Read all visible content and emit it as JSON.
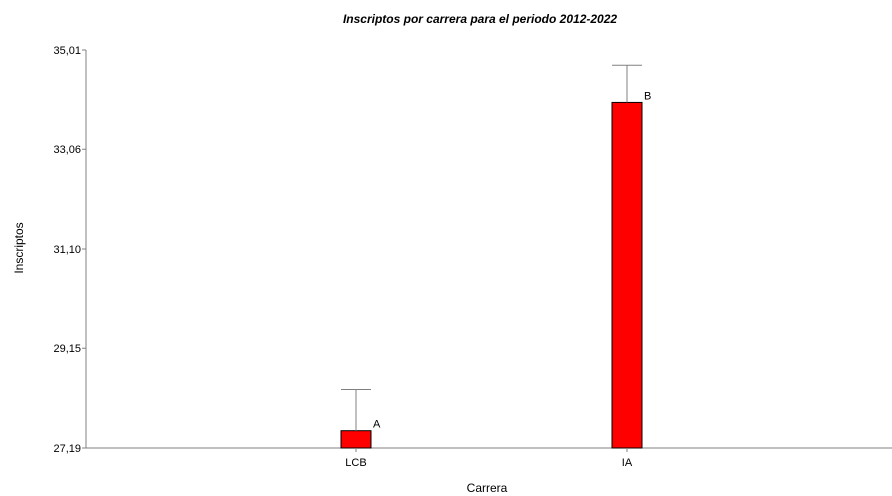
{
  "chart_data": {
    "type": "bar",
    "title": "Inscriptos por carrera para el periodo 2012-2022",
    "xlabel": "Carrera",
    "ylabel": "Inscriptos",
    "categories": [
      "LCB",
      "IA"
    ],
    "values": [
      27.53,
      33.98
    ],
    "error_upper": [
      28.34,
      34.71
    ],
    "group_letters": [
      "A",
      "B"
    ],
    "yticks": [
      "27,19",
      "29,15",
      "31,10",
      "33,06",
      "35,01"
    ],
    "ytick_values": [
      27.19,
      29.15,
      31.1,
      33.06,
      35.01
    ],
    "ylim": [
      27.19,
      35.01
    ],
    "grid": false,
    "legend": "none",
    "bar_color": "#ff0000",
    "bar_stroke": "#000000",
    "axis_color": "#808080"
  }
}
